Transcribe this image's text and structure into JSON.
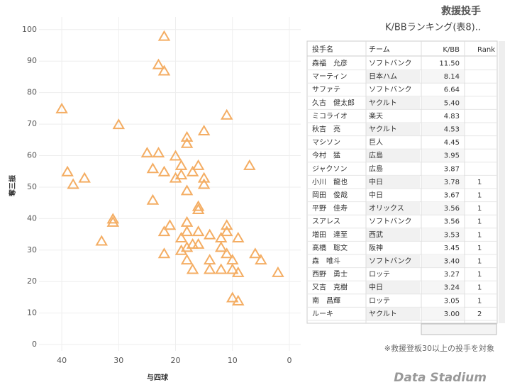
{
  "chart_data": {
    "type": "scatter",
    "x_label": "与四球",
    "y_label": "奪三振",
    "color": "#f4ad63",
    "xlim": [
      44,
      -2
    ],
    "ylim": [
      -2,
      104
    ],
    "xticks": [
      40,
      30,
      20,
      10,
      0
    ],
    "yticks": [
      0,
      10,
      20,
      30,
      40,
      50,
      60,
      70,
      80,
      90,
      100
    ],
    "grid": true,
    "series": [
      {
        "x": [
          22,
          23,
          22,
          40,
          11,
          30,
          15,
          18,
          18,
          25,
          23,
          20,
          19,
          16,
          7,
          24,
          17,
          22,
          39,
          19,
          20,
          15,
          36,
          15,
          38,
          18,
          24,
          16,
          16,
          31,
          31,
          18,
          21,
          11,
          18,
          22,
          16,
          11,
          14,
          19,
          9,
          12,
          33,
          17,
          16,
          18,
          12,
          19,
          22,
          6,
          11,
          10,
          14,
          18,
          5,
          17,
          14,
          12,
          10,
          9,
          2,
          10,
          9
        ],
        "values": [
          98,
          89,
          87,
          75,
          73,
          70,
          68,
          66,
          64,
          61,
          61,
          60,
          57,
          57,
          57,
          56,
          55,
          55,
          55,
          54,
          53,
          53,
          53,
          51,
          51,
          49,
          46,
          44,
          43,
          40,
          39,
          39,
          38,
          38,
          36,
          36,
          36,
          36,
          35,
          34,
          34,
          34,
          33,
          32,
          32,
          31,
          31,
          30,
          29,
          29,
          29,
          27,
          27,
          27,
          27,
          24,
          24,
          24,
          24,
          23,
          23,
          15,
          14
        ]
      }
    ]
  },
  "panel": {
    "title": "救援投手",
    "subtitle": "K/BBランキング(表8)..",
    "footnote": "※救援登板30以上の投手を対象",
    "logo": "Data Stadium"
  },
  "table": {
    "headers": [
      "投手名",
      "チーム",
      "K/BB",
      "Rank"
    ],
    "rows": [
      [
        "森福　允彦",
        "ソフトバンク",
        "11.50",
        ""
      ],
      [
        "マーティン",
        "日本ハム",
        "8.14",
        ""
      ],
      [
        "サファテ",
        "ソフトバンク",
        "6.64",
        ""
      ],
      [
        "久古　健太郎",
        "ヤクルト",
        "5.40",
        ""
      ],
      [
        "ミコライオ",
        "楽天",
        "4.83",
        ""
      ],
      [
        "秋吉　亮",
        "ヤクルト",
        "4.53",
        ""
      ],
      [
        "マシソン",
        "巨人",
        "4.45",
        ""
      ],
      [
        "今村　猛",
        "広島",
        "3.95",
        ""
      ],
      [
        "ジャクソン",
        "広島",
        "3.87",
        ""
      ],
      [
        "小川　龍也",
        "中日",
        "3.78",
        "1"
      ],
      [
        "岡田　俊哉",
        "中日",
        "3.67",
        "1"
      ],
      [
        "平野　佳寿",
        "オリックス",
        "3.56",
        "1"
      ],
      [
        "スアレス",
        "ソフトバンク",
        "3.56",
        "1"
      ],
      [
        "増田　達至",
        "西武",
        "3.53",
        "1"
      ],
      [
        "髙橋　聡文",
        "阪神",
        "3.45",
        "1"
      ],
      [
        "森　唯斗",
        "ソフトバンク",
        "3.40",
        "1"
      ],
      [
        "西野　勇士",
        "ロッテ",
        "3.27",
        "1"
      ],
      [
        "又吉　克樹",
        "中日",
        "3.24",
        "1"
      ],
      [
        "南　昌輝",
        "ロッテ",
        "3.05",
        "1"
      ],
      [
        "ルーキ",
        "ヤクルト",
        "3.00",
        "2"
      ]
    ]
  }
}
